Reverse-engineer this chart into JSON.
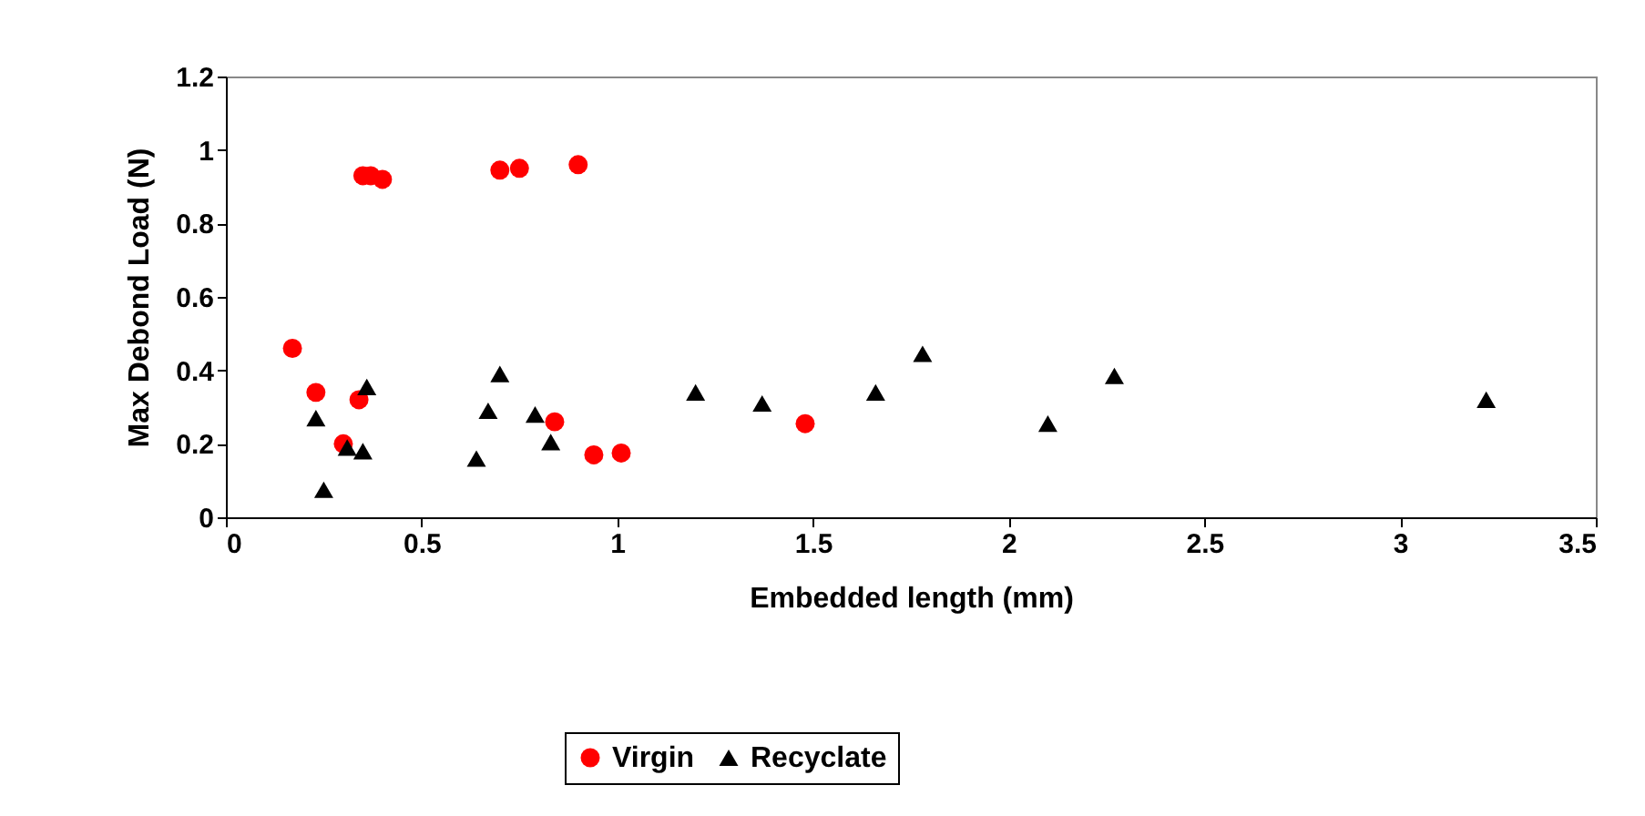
{
  "chart_data": {
    "type": "scatter",
    "xlabel": "Embedded length (mm)",
    "ylabel": "Max Debond Load (N)",
    "xlim": [
      0,
      3.5
    ],
    "xticks": [
      0,
      0.5,
      1,
      1.5,
      2,
      2.5,
      3,
      3.5
    ],
    "ylim": [
      0,
      1.2
    ],
    "yticks": [
      0,
      0.2,
      0.4,
      0.6,
      0.8,
      1,
      1.2
    ],
    "grid": false,
    "legend": "bottom",
    "series": [
      {
        "name": "Virgin",
        "color": "#ff0000",
        "marker": "circle",
        "x": [
          0.17,
          0.23,
          0.3,
          0.34,
          0.35,
          0.37,
          0.4,
          0.7,
          0.75,
          0.9,
          0.84,
          0.94,
          1.01,
          1.48
        ],
        "values": [
          0.46,
          0.34,
          0.2,
          0.32,
          0.93,
          0.93,
          0.92,
          0.945,
          0.95,
          0.96,
          0.26,
          0.17,
          0.175,
          0.255
        ]
      },
      {
        "name": "Recyclate",
        "color": "#000000",
        "marker": "triangle",
        "x": [
          0.23,
          0.25,
          0.31,
          0.35,
          0.36,
          0.64,
          0.67,
          0.7,
          0.79,
          0.83,
          1.2,
          1.37,
          1.66,
          1.78,
          2.1,
          2.27,
          3.22
        ],
        "values": [
          0.27,
          0.075,
          0.19,
          0.18,
          0.355,
          0.16,
          0.29,
          0.39,
          0.28,
          0.205,
          0.34,
          0.31,
          0.34,
          0.445,
          0.255,
          0.385,
          0.32
        ]
      }
    ]
  }
}
